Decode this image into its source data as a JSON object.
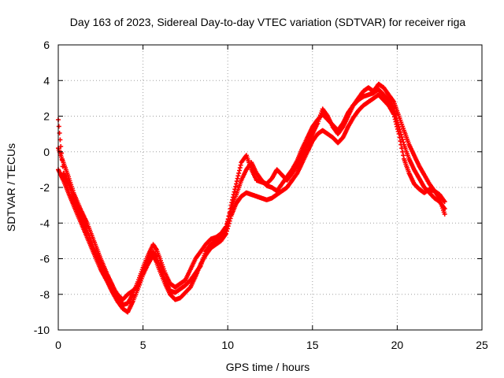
{
  "chart_data": {
    "type": "scatter",
    "title": "Day 163 of 2023, Sidereal Day-to-day VTEC variation (SDTVAR) for receiver riga",
    "xlabel": "GPS time / hours",
    "ylabel": "SDTVAR / TECUs",
    "xlim": [
      0,
      25
    ],
    "ylim": [
      -10,
      6
    ],
    "xticks": [
      0,
      5,
      10,
      15,
      20,
      25
    ],
    "yticks": [
      -10,
      -8,
      -6,
      -4,
      -2,
      0,
      2,
      4,
      6
    ],
    "grid": true,
    "marker": "+",
    "color": "#ff0000",
    "series": [
      {
        "x": [
          0.0,
          0.3,
          0.6,
          0.9,
          1.3,
          1.7,
          2.1,
          2.5,
          2.9,
          3.2,
          3.5,
          3.8,
          4.1,
          4.4,
          4.7,
          5.0,
          5.3,
          5.6,
          5.8,
          6.0,
          6.3,
          6.6,
          6.9,
          7.2,
          7.5,
          7.8,
          8.1,
          8.4,
          8.7,
          9.0,
          9.3,
          9.6,
          9.9,
          10.2,
          10.5,
          10.8,
          11.1,
          11.4,
          11.7,
          12.0,
          12.3,
          12.6,
          12.9,
          13.2,
          13.5,
          13.8,
          14.1,
          14.4,
          14.7,
          15.0,
          15.3,
          15.6,
          15.9,
          16.2,
          16.5,
          16.8,
          17.1,
          17.4,
          17.7,
          18.0,
          18.3,
          18.6,
          18.9,
          19.2,
          19.5,
          19.8,
          20.1,
          20.4,
          20.7,
          21.0,
          21.3,
          21.6,
          21.9,
          22.2,
          22.5,
          22.8
        ],
        "y": [
          0.2,
          -0.6,
          -1.4,
          -2.3,
          -3.2,
          -4.0,
          -5.0,
          -6.0,
          -6.9,
          -7.5,
          -8.1,
          -8.6,
          -8.5,
          -8.0,
          -7.3,
          -6.5,
          -5.8,
          -5.2,
          -5.5,
          -6.0,
          -6.8,
          -7.4,
          -7.6,
          -7.4,
          -7.2,
          -6.6,
          -6.0,
          -5.6,
          -5.2,
          -4.9,
          -4.8,
          -4.6,
          -4.2,
          -3.2,
          -2.4,
          -1.6,
          -1.0,
          -0.6,
          -1.2,
          -1.6,
          -1.9,
          -2.0,
          -2.2,
          -1.8,
          -1.4,
          -1.0,
          -0.5,
          0.2,
          0.8,
          1.4,
          1.8,
          2.1,
          1.8,
          1.5,
          1.2,
          1.6,
          2.2,
          2.6,
          2.9,
          3.1,
          3.2,
          3.3,
          3.5,
          3.2,
          2.9,
          2.4,
          1.4,
          0.4,
          -0.4,
          -1.0,
          -1.5,
          -2.0,
          -2.3,
          -2.6,
          -2.8,
          -3.2
        ]
      },
      {
        "x": [
          0.0,
          0.3,
          0.6,
          0.9,
          1.3,
          1.7,
          2.1,
          2.5,
          2.9,
          3.2,
          3.5,
          3.8,
          4.1,
          4.4,
          4.7,
          5.0,
          5.3,
          5.6,
          5.8,
          6.0,
          6.3,
          6.6,
          6.9,
          7.2,
          7.5,
          7.8,
          8.1,
          8.4,
          8.7,
          9.0,
          9.3,
          9.6,
          9.9,
          10.2,
          10.5,
          10.8,
          11.1,
          11.4,
          11.7,
          12.0,
          12.3,
          12.6,
          12.9,
          13.2,
          13.5,
          13.8,
          14.1,
          14.4,
          14.7,
          15.0,
          15.3,
          15.6,
          15.9,
          16.2,
          16.5,
          16.8,
          17.1,
          17.4,
          17.7,
          18.0,
          18.3,
          18.6,
          18.9,
          19.2,
          19.5,
          19.8,
          20.1,
          20.4,
          20.7,
          21.0,
          21.3,
          21.6,
          21.9,
          22.2,
          22.5,
          22.8
        ],
        "y": [
          -1.0,
          -1.6,
          -2.3,
          -3.0,
          -3.9,
          -4.8,
          -5.7,
          -6.6,
          -7.3,
          -7.9,
          -8.4,
          -8.8,
          -9.0,
          -8.4,
          -7.7,
          -6.9,
          -6.3,
          -5.8,
          -6.2,
          -6.7,
          -7.4,
          -8.0,
          -8.3,
          -8.2,
          -7.9,
          -7.6,
          -7.0,
          -6.3,
          -5.8,
          -5.4,
          -5.2,
          -5.0,
          -4.6,
          -3.6,
          -2.9,
          -2.5,
          -2.3,
          -2.4,
          -2.5,
          -2.6,
          -2.7,
          -2.6,
          -2.4,
          -2.2,
          -2.0,
          -1.6,
          -1.2,
          -0.6,
          0.0,
          0.6,
          1.0,
          1.2,
          1.0,
          0.8,
          0.5,
          0.8,
          1.4,
          1.9,
          2.3,
          2.6,
          2.8,
          3.0,
          3.2,
          2.9,
          2.6,
          2.1,
          1.0,
          -0.4,
          -1.2,
          -1.8,
          -2.1,
          -2.3,
          -2.1,
          -2.2,
          -2.4,
          -2.8
        ]
      },
      {
        "x": [
          0.0,
          0.3,
          0.6,
          0.9,
          1.3,
          1.7,
          2.1,
          2.5,
          2.9,
          3.2,
          3.5,
          3.8,
          4.1,
          4.4,
          4.7,
          5.0,
          5.3,
          5.6,
          5.8,
          6.0,
          6.3,
          6.6,
          6.9,
          7.2,
          7.5,
          7.8,
          8.1,
          8.4,
          8.7,
          9.0,
          9.3,
          9.6,
          9.9,
          10.2,
          10.5,
          10.8,
          11.1,
          11.4,
          11.7,
          12.0,
          12.3,
          12.6,
          12.9,
          13.2,
          13.5,
          13.8,
          14.1,
          14.4,
          14.7,
          15.0,
          15.3,
          15.6,
          15.9,
          16.2,
          16.5,
          16.8,
          17.1,
          17.4,
          17.7,
          18.0,
          18.3,
          18.6,
          18.9,
          19.2,
          19.5,
          19.8,
          20.1,
          20.4,
          20.7,
          21.0,
          21.3,
          21.6,
          21.9,
          22.2,
          22.5,
          22.8
        ],
        "y": [
          1.8,
          -1.2,
          -1.8,
          -2.6,
          -3.5,
          -4.4,
          -5.4,
          -6.3,
          -7.0,
          -7.6,
          -8.0,
          -8.3,
          -8.0,
          -7.8,
          -7.5,
          -6.8,
          -6.0,
          -5.6,
          -5.9,
          -6.4,
          -7.2,
          -7.8,
          -7.9,
          -7.7,
          -7.5,
          -7.2,
          -6.8,
          -6.4,
          -5.6,
          -5.2,
          -5.0,
          -4.8,
          -4.4,
          -3.0,
          -1.8,
          -0.6,
          -0.2,
          -1.0,
          -1.6,
          -1.7,
          -1.8,
          -1.5,
          -1.0,
          -1.3,
          -1.6,
          -1.2,
          -0.8,
          -0.2,
          0.4,
          1.0,
          1.6,
          2.4,
          2.0,
          1.4,
          1.0,
          1.4,
          2.0,
          2.6,
          3.0,
          3.4,
          3.6,
          3.4,
          3.8,
          3.6,
          3.2,
          2.8,
          2.0,
          1.2,
          0.4,
          -0.2,
          -0.8,
          -1.3,
          -1.8,
          -2.2,
          -2.6,
          -3.5
        ]
      }
    ]
  }
}
